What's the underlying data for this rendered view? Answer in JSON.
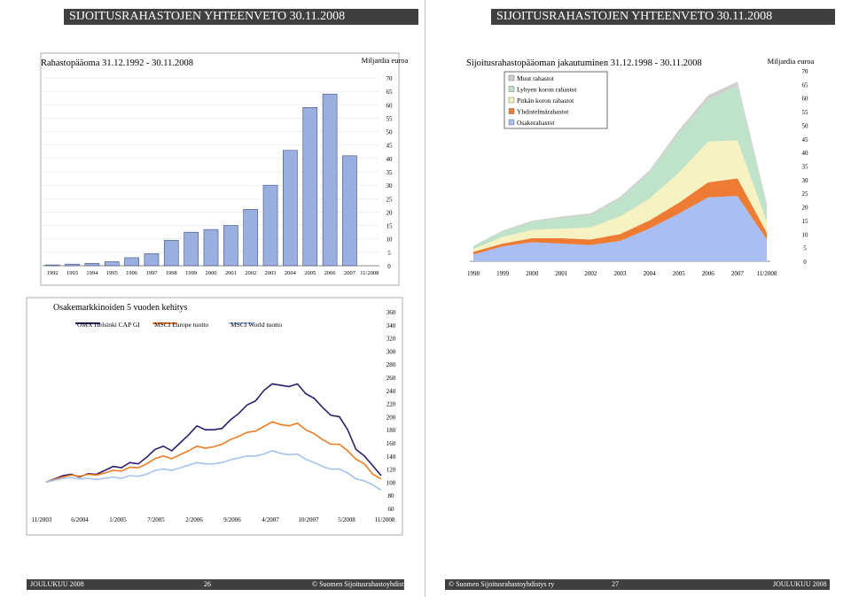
{
  "header": {
    "left": "SIJOITUSRAHASTOJEN YHTEENVETO 30.11.2008",
    "right": "SIJOITUSRAHASTOJEN YHTEENVETO 30.11.2008"
  },
  "footer": {
    "left_month": "JOULUKUU 2008",
    "left_page": "26",
    "left_copy": "© Suomen Sijoitusrahastoyhdistys ry",
    "right_copy": "© Suomen Sijoitusrahastoyhdistys ry",
    "right_page": "27",
    "right_month": "JOULUKUU 2008"
  },
  "chart_data": [
    {
      "id": "bar",
      "type": "bar",
      "title": "Rahastopääoma 31.12.1992 - 30.11.2008",
      "unit_label": "Miljardia euroa",
      "categories": [
        "1992",
        "1993",
        "1994",
        "1995",
        "1996",
        "1997",
        "1998",
        "1999",
        "2000",
        "2001",
        "2002",
        "2003",
        "2004",
        "2005",
        "2006",
        "2007",
        "11/2008"
      ],
      "values": [
        0.3,
        0.6,
        0.9,
        1.5,
        3.0,
        4.5,
        9.5,
        12.5,
        13.5,
        15.0,
        21.0,
        30.0,
        43.0,
        59.0,
        64.0,
        41.0,
        0
      ],
      "ylim": [
        0,
        70
      ],
      "yticks": [
        0,
        5,
        10,
        15,
        20,
        25,
        30,
        35,
        40,
        45,
        50,
        55,
        60,
        65,
        70
      ],
      "color": "#9aaee0"
    },
    {
      "id": "area",
      "type": "area",
      "title": "Sijoitusrahastopääoman jakautuminen 31.12.1998 - 30.11.2008",
      "unit_label": "Miljardia euroa",
      "categories": [
        "1998",
        "1999",
        "2000",
        "2001",
        "2002",
        "2003",
        "2004",
        "2005",
        "2006",
        "2007",
        "11/2008"
      ],
      "ylim": [
        0,
        70
      ],
      "yticks": [
        0,
        5,
        10,
        15,
        20,
        25,
        30,
        35,
        40,
        45,
        50,
        55,
        60,
        65,
        70
      ],
      "legend_position": "top-left",
      "series": [
        {
          "name": "Osakerahastot",
          "color": "#a9bef2",
          "values": [
            2.5,
            5.5,
            7.0,
            6.5,
            6.0,
            7.5,
            12.0,
            17.5,
            23.5,
            24.0,
            8.0
          ]
        },
        {
          "name": "Yhdistelmärahastot",
          "color": "#ee7b33",
          "values": [
            1.0,
            1.0,
            1.5,
            2.0,
            2.0,
            2.5,
            3.0,
            4.0,
            5.5,
            6.5,
            2.5
          ]
        },
        {
          "name": "Pitkän koron rahastot",
          "color": "#f6f2c2",
          "values": [
            1.0,
            2.5,
            3.0,
            3.5,
            4.5,
            6.5,
            8.0,
            11.0,
            15.0,
            14.0,
            4.0
          ]
        },
        {
          "name": "Lyhyen koron rahastot",
          "color": "#bfe3c8",
          "values": [
            1.0,
            2.0,
            3.0,
            4.0,
            4.5,
            6.5,
            9.5,
            14.5,
            15.5,
            20.0,
            6.0
          ]
        },
        {
          "name": "Muut rahastot",
          "color": "#cfcfcf",
          "values": [
            0.2,
            0.3,
            0.4,
            0.5,
            0.6,
            0.7,
            0.9,
            1.2,
            1.5,
            1.5,
            0.7
          ]
        }
      ]
    },
    {
      "id": "line",
      "type": "line",
      "title": "Osakemarkkinoiden 5 vuoden kehitys",
      "x_labels": [
        "11/2003",
        "6/2004",
        "1/2005",
        "7/2005",
        "2/2006",
        "9/2006",
        "4/2007",
        "10/2007",
        "5/2008",
        "11/2008"
      ],
      "ylim": [
        60,
        360
      ],
      "yticks": [
        60,
        80,
        100,
        120,
        140,
        160,
        180,
        200,
        220,
        240,
        260,
        280,
        300,
        320,
        340,
        360
      ],
      "legend_position": "top",
      "series": [
        {
          "name": "OMX Helsinki CAP GI",
          "color": "#2e1a6e",
          "values": [
            100,
            105,
            110,
            112,
            108,
            113,
            112,
            118,
            124,
            122,
            130,
            128,
            138,
            150,
            155,
            148,
            160,
            172,
            186,
            180,
            180,
            182,
            195,
            205,
            218,
            224,
            240,
            250,
            248,
            246,
            250,
            235,
            228,
            214,
            202,
            200,
            180,
            150,
            140,
            125,
            110
          ]
        },
        {
          "name": "MSCI Europe tuotto",
          "color": "#ef7c22",
          "values": [
            100,
            104,
            108,
            111,
            109,
            112,
            111,
            114,
            118,
            117,
            123,
            122,
            128,
            136,
            140,
            136,
            142,
            148,
            155,
            152,
            154,
            158,
            165,
            170,
            176,
            178,
            185,
            192,
            188,
            186,
            190,
            180,
            174,
            165,
            158,
            158,
            148,
            135,
            128,
            112,
            105
          ]
        },
        {
          "name": "MSCI World tuotto",
          "color": "#a7c2ee",
          "values": [
            100,
            103,
            106,
            107,
            105,
            106,
            104,
            106,
            108,
            106,
            110,
            109,
            112,
            118,
            120,
            118,
            122,
            126,
            130,
            128,
            128,
            130,
            134,
            137,
            140,
            140,
            143,
            148,
            144,
            142,
            143,
            135,
            130,
            124,
            120,
            120,
            114,
            105,
            102,
            96,
            88
          ]
        }
      ]
    }
  ]
}
